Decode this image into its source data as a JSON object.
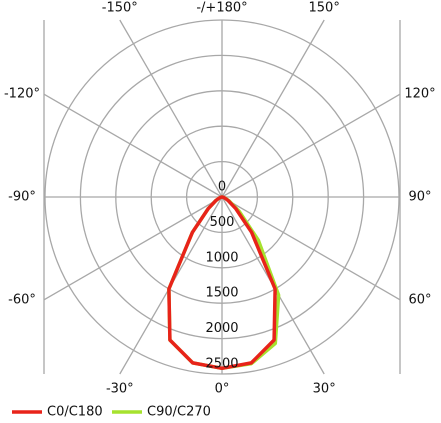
{
  "chart_data": {
    "type": "polar",
    "angles": [
      -90,
      -80,
      -70,
      -60,
      -50,
      -40,
      -30,
      -20,
      -10,
      0,
      10,
      20,
      30,
      40,
      50,
      60,
      70,
      80,
      90
    ],
    "series": [
      {
        "name": "C90/C270",
        "color": "#a6e22e",
        "values": [
          0,
          10,
          40,
          100,
          250,
          650,
          1500,
          2150,
          2380,
          2420,
          2390,
          2200,
          1600,
          800,
          320,
          120,
          50,
          15,
          0
        ]
      },
      {
        "name": "C0/C180",
        "color": "#e8231a",
        "values": [
          0,
          10,
          40,
          100,
          250,
          650,
          1500,
          2150,
          2380,
          2420,
          2380,
          2150,
          1500,
          650,
          250,
          100,
          40,
          10,
          0
        ]
      }
    ],
    "rlim": [
      0,
      2500
    ],
    "rticks": [
      0,
      500,
      1000,
      1500,
      2000,
      2500
    ],
    "angle_ticks": [
      {
        "value": 0,
        "label": "0°"
      },
      {
        "value": 30,
        "label": "30°"
      },
      {
        "value": 60,
        "label": "60°"
      },
      {
        "value": 90,
        "label": "90°"
      },
      {
        "value": 120,
        "label": "120°"
      },
      {
        "value": 150,
        "label": "150°"
      },
      {
        "value": 180,
        "label": "-/+180°"
      },
      {
        "value": -150,
        "label": "-150°"
      },
      {
        "value": -120,
        "label": "-120°"
      },
      {
        "value": -90,
        "label": "-90°"
      },
      {
        "value": -60,
        "label": "-60°"
      },
      {
        "value": -30,
        "label": "-30°"
      }
    ],
    "grid": true
  }
}
